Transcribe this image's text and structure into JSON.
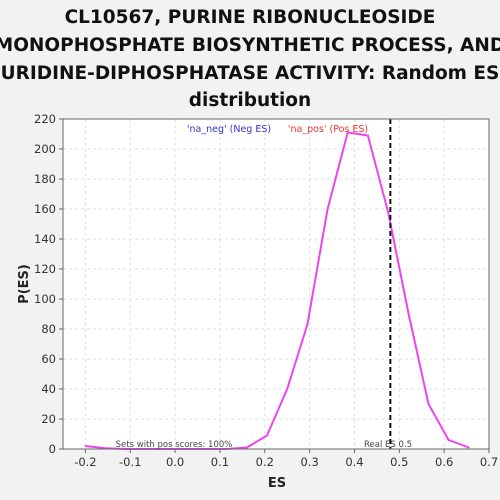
{
  "chart_data": {
    "type": "line",
    "title_lines": [
      "CL10567, PURINE RIBONUCLEOSIDE",
      "MONOPHOSPHATE BIOSYNTHETIC PROCESS, AND",
      "URIDINE-DIPHOSPHATASE ACTIVITY: Random ES",
      "distribution"
    ],
    "xlabel": "ES",
    "ylabel": "P(ES)",
    "xlim": [
      -0.25,
      0.7
    ],
    "ylim": [
      0,
      220
    ],
    "xticks": [
      "-0.2",
      "-0.1",
      "0.0",
      "0.1",
      "0.2",
      "0.3",
      "0.4",
      "0.5",
      "0.6",
      "0.7"
    ],
    "yticks": [
      "0",
      "20",
      "40",
      "60",
      "80",
      "100",
      "120",
      "140",
      "160",
      "180",
      "200",
      "220"
    ],
    "grid": true,
    "legend": [
      {
        "label": "'na_neg' (Neg ES)",
        "color": "#3333cc"
      },
      {
        "label": "'na_pos' (Pos ES)",
        "color": "#ee3333"
      }
    ],
    "series": [
      {
        "color": "#ee44ee",
        "x": [
          -0.2,
          -0.155,
          -0.11,
          -0.065,
          -0.02,
          0.025,
          0.07,
          0.115,
          0.16,
          0.205,
          0.25,
          0.295,
          0.34,
          0.385,
          0.43,
          0.475,
          0.52,
          0.565,
          0.61,
          0.655
        ],
        "y": [
          2,
          0.5,
          0,
          0,
          0,
          0,
          0,
          0,
          1,
          9,
          40,
          83,
          160,
          211,
          209,
          158,
          91,
          30,
          6,
          1
        ]
      }
    ],
    "vline": {
      "x": 0.48,
      "label": "Real ES 0.5"
    },
    "annotation": "Sets with pos scores: 100%"
  }
}
